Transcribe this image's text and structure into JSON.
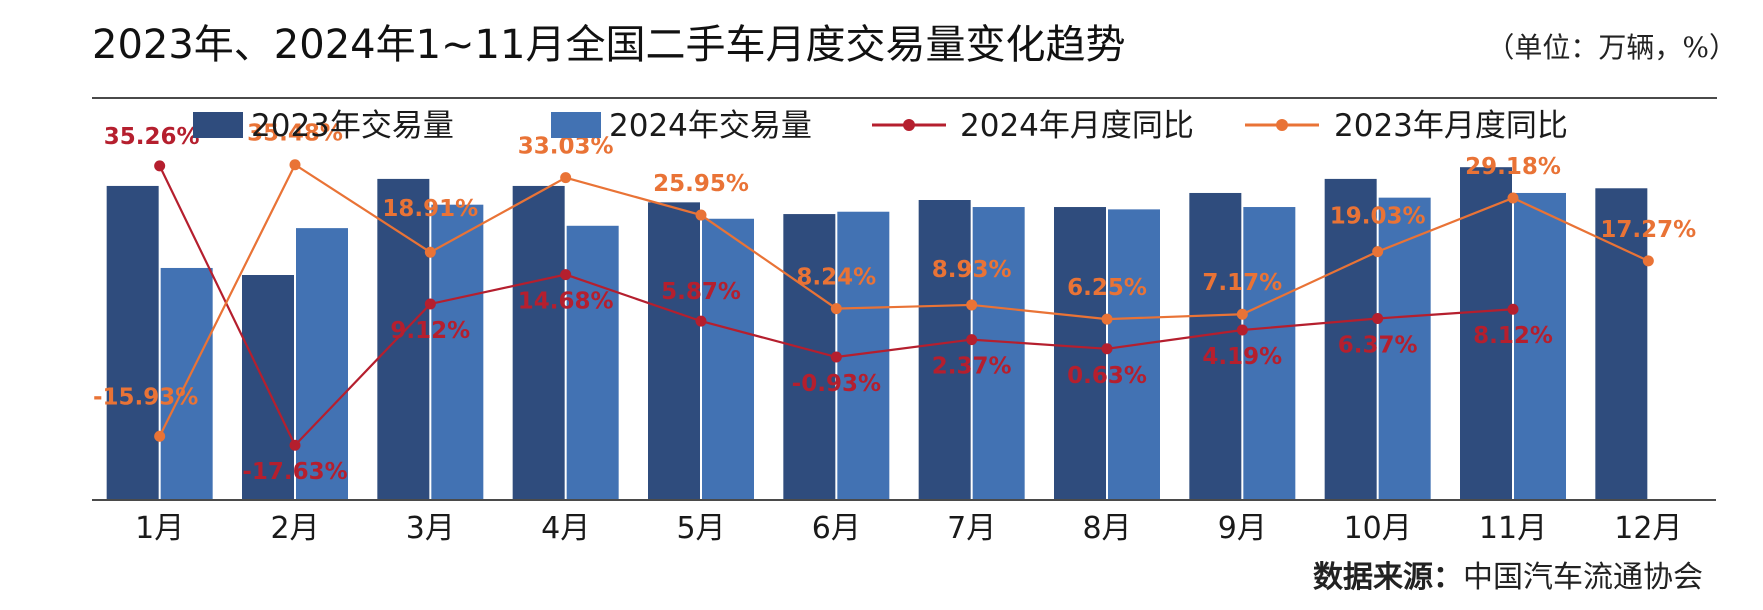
{
  "header": {
    "title": "2023年、2024年1~11月全国二手车月度交易量变化趋势",
    "unit": "（单位：万辆，%）"
  },
  "footer": {
    "source_label": "数据来源：",
    "source_org": "中国汽车流通协会"
  },
  "colors": {
    "bar_2023": "#2f4c7d",
    "bar_2024": "#4272b3",
    "line_2024": "#b51f2e",
    "line_2023": "#e97336",
    "axis": "#4a4a4a"
  },
  "chart_data": {
    "type": "bar",
    "categories": [
      "1月",
      "2月",
      "3月",
      "4月",
      "5月",
      "6月",
      "7月",
      "8月",
      "9月",
      "10月",
      "11月",
      "12月"
    ],
    "series": [
      {
        "name": "2023年交易量",
        "kind": "bar",
        "values": [
          134,
          96,
          137,
          134,
          127,
          122,
          128,
          125,
          131,
          137,
          142,
          133
        ]
      },
      {
        "name": "2024年交易量",
        "kind": "bar",
        "values": [
          99,
          116,
          126,
          117,
          120,
          123,
          125,
          124,
          125,
          129,
          131,
          null
        ]
      },
      {
        "name": "2024年月度同比",
        "kind": "line",
        "axis": "right",
        "values": [
          35.26,
          -17.63,
          9.12,
          14.68,
          5.87,
          -0.93,
          2.37,
          0.63,
          4.19,
          6.37,
          8.12,
          null
        ],
        "labels": [
          "35.26%",
          "-17.63%",
          "9.12%",
          "14.68%",
          "5.87%",
          "-0.93%",
          "2.37%",
          "0.63%",
          "4.19%",
          "6.37%",
          "8.12%",
          ""
        ]
      },
      {
        "name": "2023年月度同比",
        "kind": "line",
        "axis": "right",
        "values": [
          -15.93,
          35.48,
          18.91,
          33.03,
          25.95,
          8.24,
          8.93,
          6.25,
          7.17,
          19.03,
          29.18,
          17.27
        ],
        "labels": [
          "-15.93%",
          "35.48%",
          "18.91%",
          "33.03%",
          "25.95%",
          "8.24%",
          "8.93%",
          "6.25%",
          "7.17%",
          "19.03%",
          "29.18%",
          "17.27%"
        ]
      }
    ],
    "legend_position": "top",
    "grid": false,
    "ylim_left": [
      0,
      160
    ],
    "ylim_right": [
      -28,
      43
    ]
  }
}
